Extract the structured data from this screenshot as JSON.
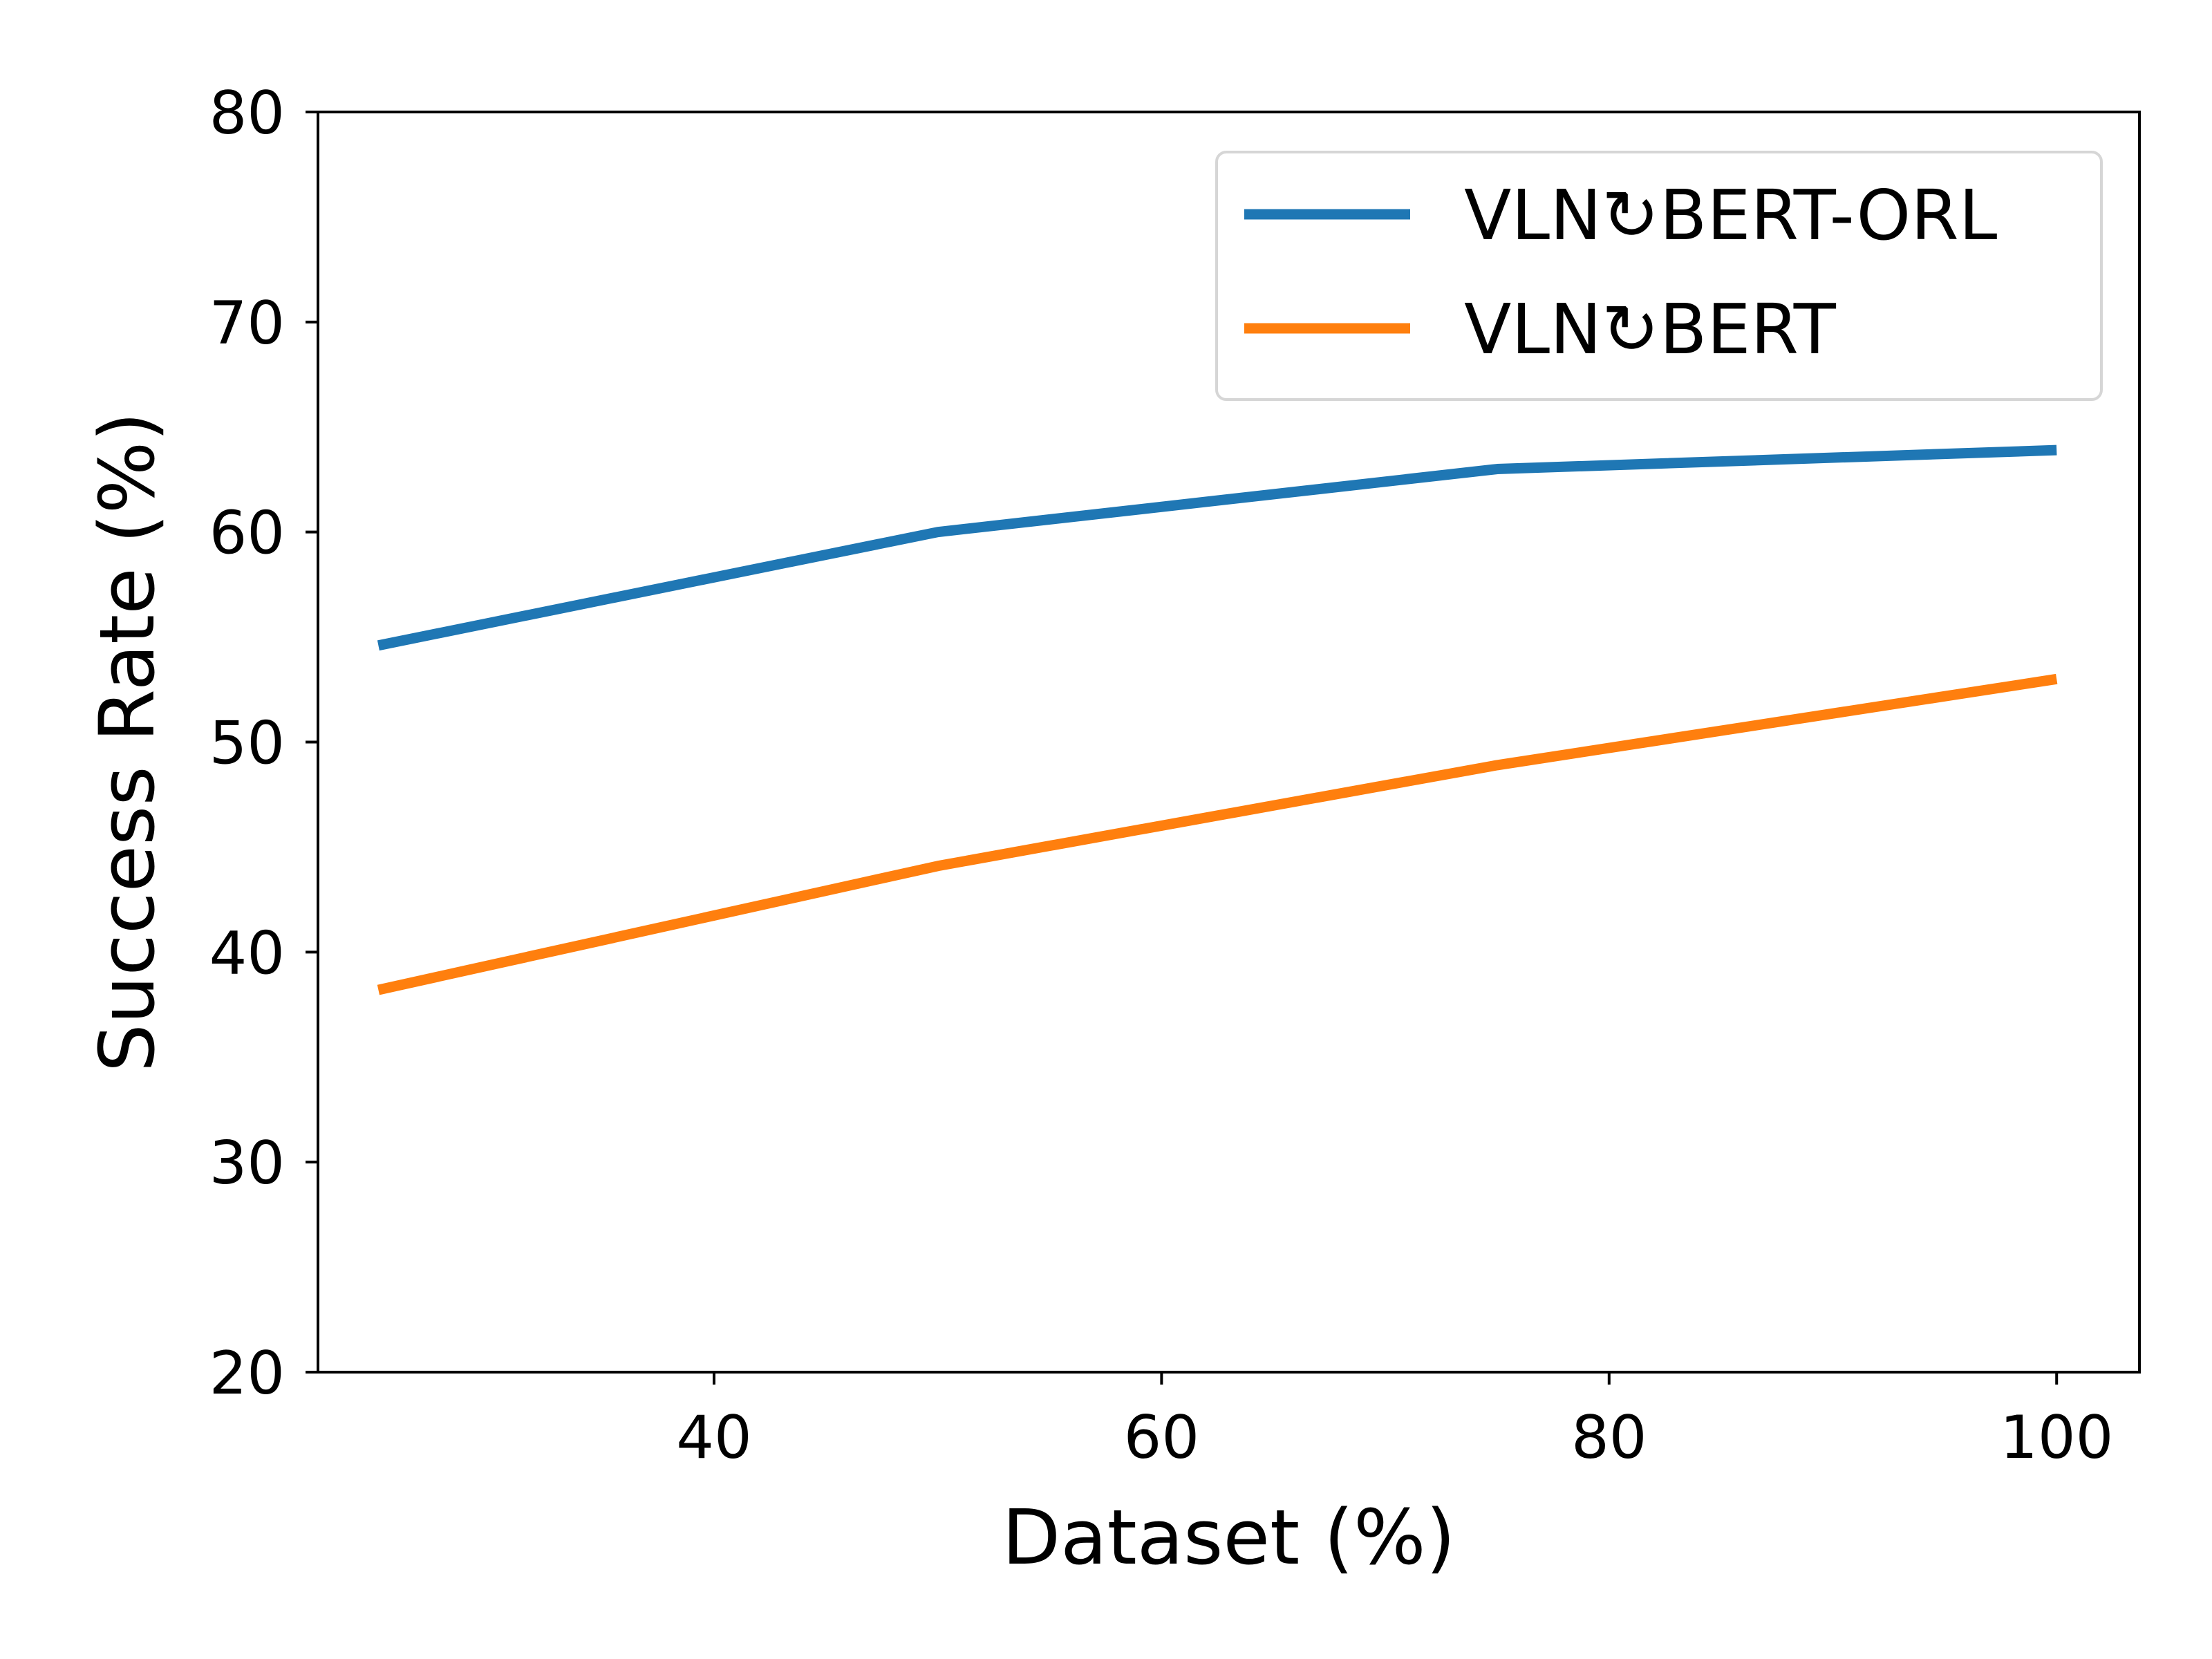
{
  "chart_data": {
    "type": "line",
    "title": "",
    "xlabel": "Dataset (%)",
    "ylabel": "Success Rate (%)",
    "xlim": [
      22.3,
      103.7
    ],
    "ylim": [
      20,
      80
    ],
    "xticks": [
      40,
      60,
      80,
      100
    ],
    "yticks": [
      20,
      30,
      40,
      50,
      60,
      70,
      80
    ],
    "grid": false,
    "legend_position": "top-right",
    "x": [
      25,
      50,
      75,
      100
    ],
    "series": [
      {
        "name": "VLN↻BERT-ORL",
        "color": "#1f77b4",
        "values": [
          54.6,
          60.0,
          63.0,
          63.9
        ]
      },
      {
        "name": "VLN↻BERT",
        "color": "#ff7f0e",
        "values": [
          38.2,
          44.1,
          48.9,
          53.0
        ]
      }
    ]
  }
}
